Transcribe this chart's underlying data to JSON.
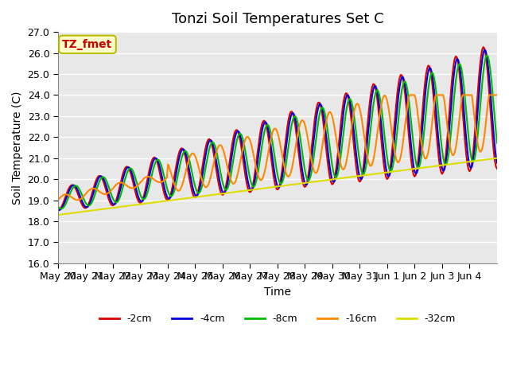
{
  "title": "Tonzi Soil Temperatures Set C",
  "xlabel": "Time",
  "ylabel": "Soil Temperature (C)",
  "annotation_text": "TZ_fmet",
  "annotation_bg": "#ffffcc",
  "annotation_border": "#bbbb00",
  "annotation_color": "#cc0000",
  "ylim": [
    16.0,
    27.0
  ],
  "yticks": [
    16.0,
    17.0,
    18.0,
    19.0,
    20.0,
    21.0,
    22.0,
    23.0,
    24.0,
    25.0,
    26.0,
    27.0
  ],
  "xtick_labels": [
    "May 20",
    "May 21",
    "May 22",
    "May 23",
    "May 24",
    "May 25",
    "May 26",
    "May 27",
    "May 28",
    "May 29",
    "May 30",
    "May 31",
    "Jun 1",
    "Jun 2",
    "Jun 3",
    "Jun 4"
  ],
  "legend_labels": [
    "-2cm",
    "-4cm",
    "-8cm",
    "-16cm",
    "-32cm"
  ],
  "legend_colors": [
    "#dd0000",
    "#0000dd",
    "#00bb00",
    "#ff8800",
    "#dddd00"
  ],
  "line_widths": [
    1.5,
    1.5,
    1.5,
    1.5,
    1.5
  ],
  "bg_color": "#e8e8e8",
  "title_fontsize": 13,
  "axis_fontsize": 10,
  "tick_fontsize": 9
}
